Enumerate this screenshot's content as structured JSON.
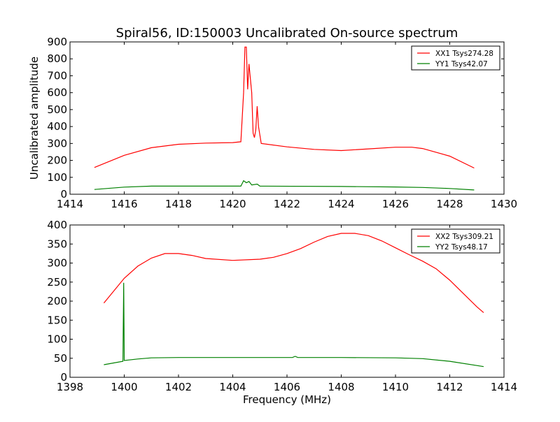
{
  "chart_data": [
    {
      "type": "line",
      "title": "Spiral56, ID:150003 Uncalibrated On-source spectrum",
      "xlabel": "",
      "ylabel": "Uncalibrated amplitude",
      "xlim": [
        1414,
        1430
      ],
      "ylim": [
        0,
        900
      ],
      "xticks": [
        1414,
        1416,
        1418,
        1420,
        1422,
        1424,
        1426,
        1428,
        1430
      ],
      "yticks": [
        0,
        100,
        200,
        300,
        400,
        500,
        600,
        700,
        800,
        900
      ],
      "grid": false,
      "legend": "top-right",
      "series": [
        {
          "name": "XX1 Tsys274.28",
          "color": "#ff0000",
          "x": [
            1414.9,
            1416,
            1417,
            1418,
            1419,
            1420,
            1420.3,
            1420.4,
            1420.45,
            1420.5,
            1420.55,
            1420.6,
            1420.7,
            1420.75,
            1420.8,
            1420.85,
            1420.9,
            1420.95,
            1421.05,
            1422,
            1423,
            1424,
            1425,
            1426,
            1426.6,
            1427,
            1428,
            1428.9
          ],
          "y": [
            158,
            230,
            275,
            295,
            302,
            305,
            310,
            600,
            870,
            870,
            620,
            770,
            600,
            360,
            335,
            380,
            520,
            400,
            300,
            280,
            265,
            258,
            268,
            278,
            278,
            270,
            225,
            155
          ]
        },
        {
          "name": "YY1 Tsys42.07",
          "color": "#008000",
          "x": [
            1414.9,
            1416,
            1417,
            1420.3,
            1420.4,
            1420.5,
            1420.6,
            1420.7,
            1420.9,
            1421,
            1424,
            1426,
            1427,
            1428,
            1428.9
          ],
          "y": [
            28,
            42,
            48,
            48,
            80,
            68,
            75,
            55,
            60,
            48,
            46,
            43,
            40,
            34,
            25
          ]
        }
      ]
    },
    {
      "type": "line",
      "title": "",
      "xlabel": "Frequency (MHz)",
      "ylabel": "",
      "xlim": [
        1398,
        1414
      ],
      "ylim": [
        0,
        400
      ],
      "xticks": [
        1398,
        1400,
        1402,
        1404,
        1406,
        1408,
        1410,
        1412,
        1414
      ],
      "yticks": [
        0,
        50,
        100,
        150,
        200,
        250,
        300,
        350,
        400
      ],
      "grid": false,
      "legend": "top-right",
      "series": [
        {
          "name": "XX2 Tsys309.21",
          "color": "#ff0000",
          "x": [
            1399.25,
            1400,
            1400.5,
            1401,
            1401.5,
            1402,
            1402.5,
            1403,
            1404,
            1405,
            1405.5,
            1406,
            1406.5,
            1407,
            1407.5,
            1408,
            1408.5,
            1409,
            1409.5,
            1410,
            1410.5,
            1411,
            1411.5,
            1412,
            1412.5,
            1413,
            1413.25
          ],
          "y": [
            195,
            260,
            292,
            313,
            325,
            325,
            320,
            312,
            307,
            310,
            315,
            325,
            338,
            355,
            370,
            378,
            378,
            372,
            358,
            340,
            322,
            305,
            285,
            255,
            220,
            185,
            170
          ]
        },
        {
          "name": "YY2 Tsys48.17",
          "color": "#008000",
          "x": [
            1399.25,
            1399.95,
            1399.98,
            1400.0,
            1400.5,
            1401,
            1402,
            1404,
            1406.2,
            1406.3,
            1406.4,
            1408,
            1410,
            1411,
            1412,
            1413.25
          ],
          "y": [
            33,
            42,
            248,
            44,
            48,
            51,
            52,
            52,
            52,
            55,
            52,
            52,
            51,
            49,
            42,
            28
          ]
        }
      ]
    }
  ]
}
